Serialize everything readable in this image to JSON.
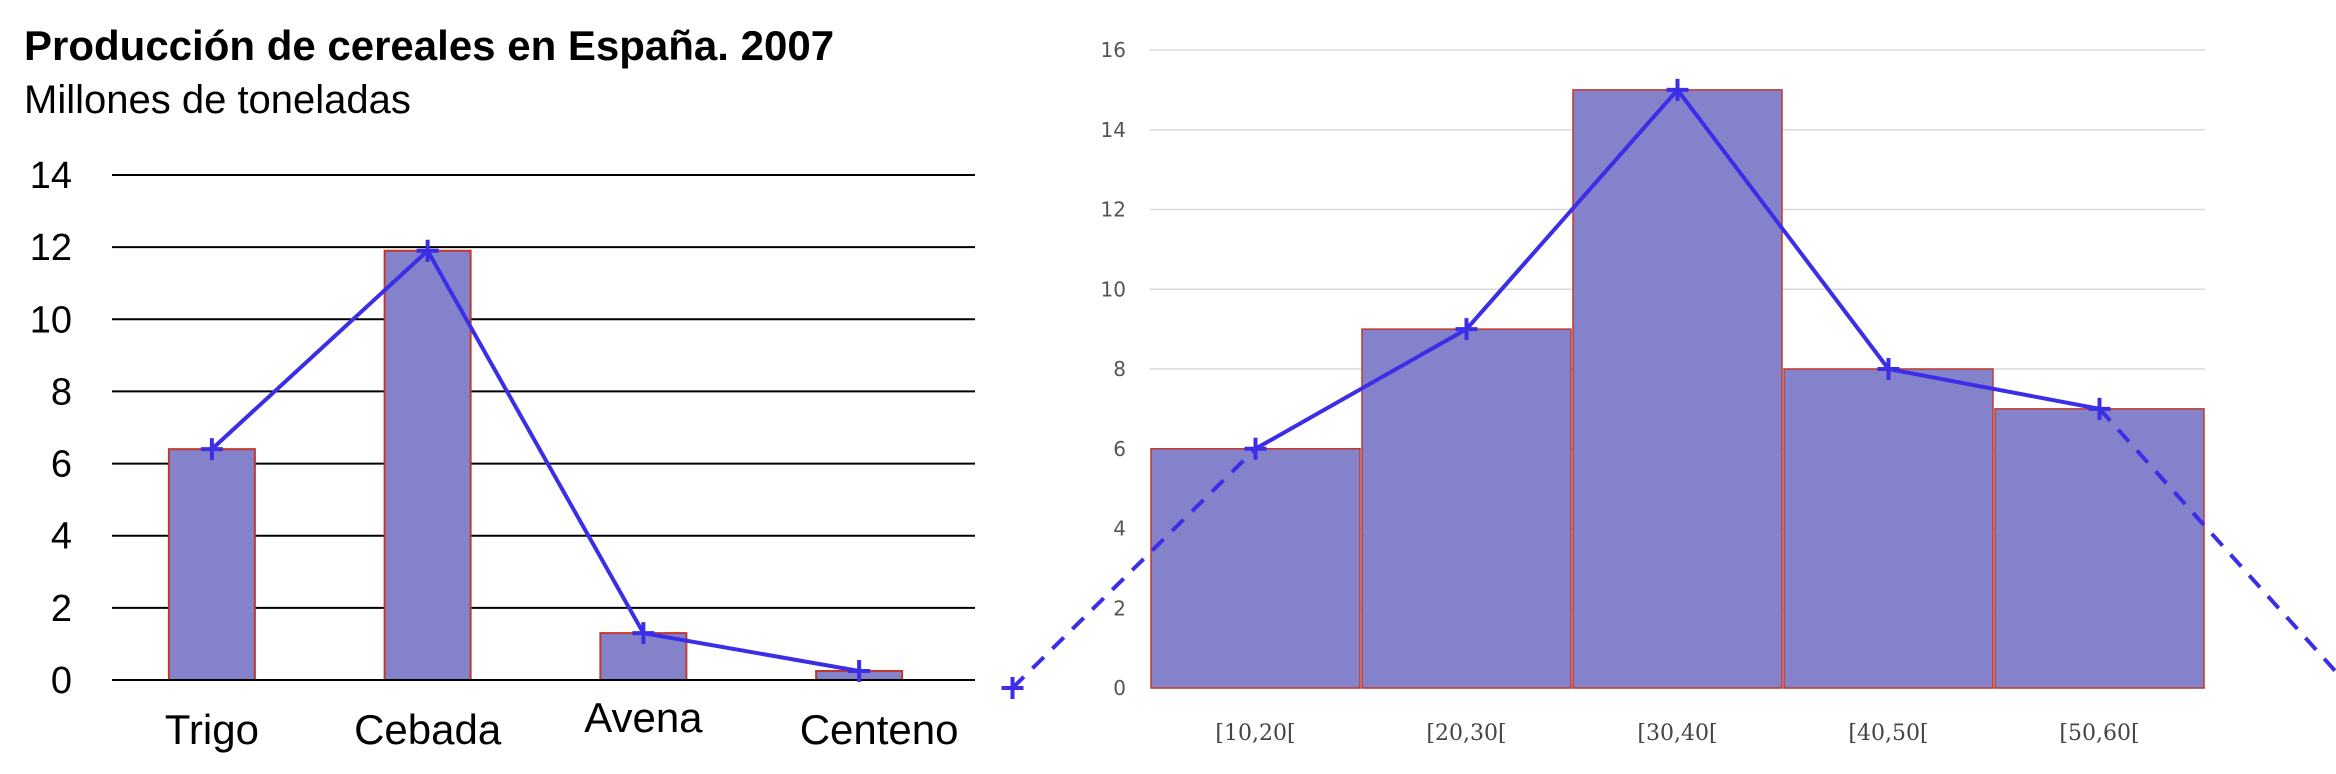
{
  "chart_data": [
    {
      "type": "bar",
      "title": "Producción de cereales en España. 2007",
      "subtitle": "Millones de toneladas",
      "categories": [
        "Trigo",
        "Cebada",
        "Avena",
        "Centeno"
      ],
      "values": [
        6.4,
        11.9,
        1.3,
        0.25
      ],
      "polygon": [
        6.4,
        11.9,
        1.3,
        0.25
      ],
      "yticks": [
        "0",
        "2",
        "4",
        "6",
        "8",
        "10",
        "12",
        "14"
      ],
      "ylim": [
        0,
        14
      ],
      "grid": true,
      "colors": {
        "bar": "#8582cc",
        "bar_border": "#c0392b",
        "line": "#3b2ee6",
        "grid": "#000000"
      }
    },
    {
      "type": "bar",
      "categories": [
        "[10,20[",
        "[20,30[",
        "[30,40[",
        "[40,50[",
        "[50,60["
      ],
      "values": [
        6,
        9,
        15,
        8,
        7
      ],
      "polygon": [
        6,
        9,
        15,
        8,
        7
      ],
      "polygon_extension": [
        0,
        0
      ],
      "yticks": [
        "0",
        "2",
        "4",
        "6",
        "8",
        "10",
        "12",
        "14",
        "16"
      ],
      "ylim": [
        0,
        16
      ],
      "grid": true,
      "colors": {
        "bar": "#8582cc",
        "bar_border": "#c0392b",
        "line": "#3b2ee6",
        "grid": "#d9d9d9"
      }
    }
  ]
}
